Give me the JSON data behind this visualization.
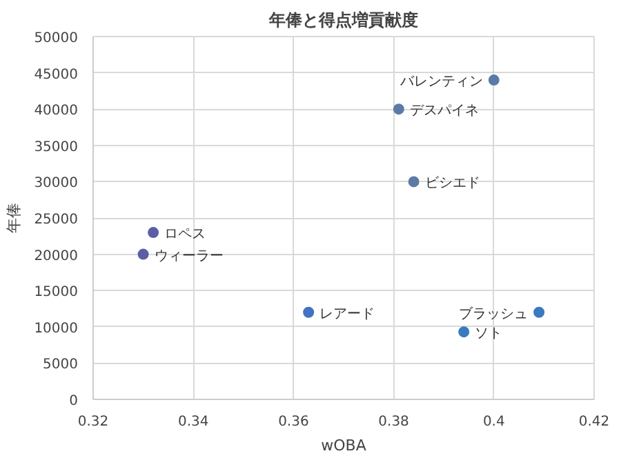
{
  "chart_data": {
    "type": "scatter",
    "title": "年俸と得点増貢献度",
    "xlabel": "wOBA",
    "ylabel": "年俸",
    "x": [
      0.4,
      0.381,
      0.384,
      0.332,
      0.33,
      0.363,
      0.394,
      0.409
    ],
    "values": [
      44000,
      40000,
      30000,
      23000,
      20000,
      12000,
      9300,
      12000
    ],
    "colors": [
      "#5b7ba6",
      "#5b7ba6",
      "#5b7ba6",
      "#5b5ea6",
      "#5b5ea6",
      "#4472c4",
      "#3a7bbf",
      "#3a7bbf"
    ],
    "annotations": [
      {
        "text": "バレンティン",
        "x": 0.4,
        "y": 44000
      },
      {
        "text": "デスパイネ",
        "x": 0.381,
        "y": 40000
      },
      {
        "text": "ビシエド",
        "x": 0.384,
        "y": 30000
      },
      {
        "text": "ロペス",
        "x": 0.332,
        "y": 23000
      },
      {
        "text": "ウィーラー",
        "x": 0.33,
        "y": 20000
      },
      {
        "text": "レアード",
        "x": 0.363,
        "y": 12000
      },
      {
        "text": "ソト",
        "x": 0.394,
        "y": 9300
      },
      {
        "text": "ブラッシュ",
        "x": 0.409,
        "y": 12000
      }
    ],
    "xlim": [
      0.32,
      0.42
    ],
    "xticks": [
      0.32,
      0.34,
      0.36,
      0.38,
      0.4,
      0.42
    ],
    "ylim": [
      0,
      50000
    ],
    "yticks": [
      0,
      5000,
      10000,
      15000,
      20000,
      25000,
      30000,
      35000,
      40000,
      45000,
      50000
    ],
    "grid": true,
    "marker": "circle"
  }
}
